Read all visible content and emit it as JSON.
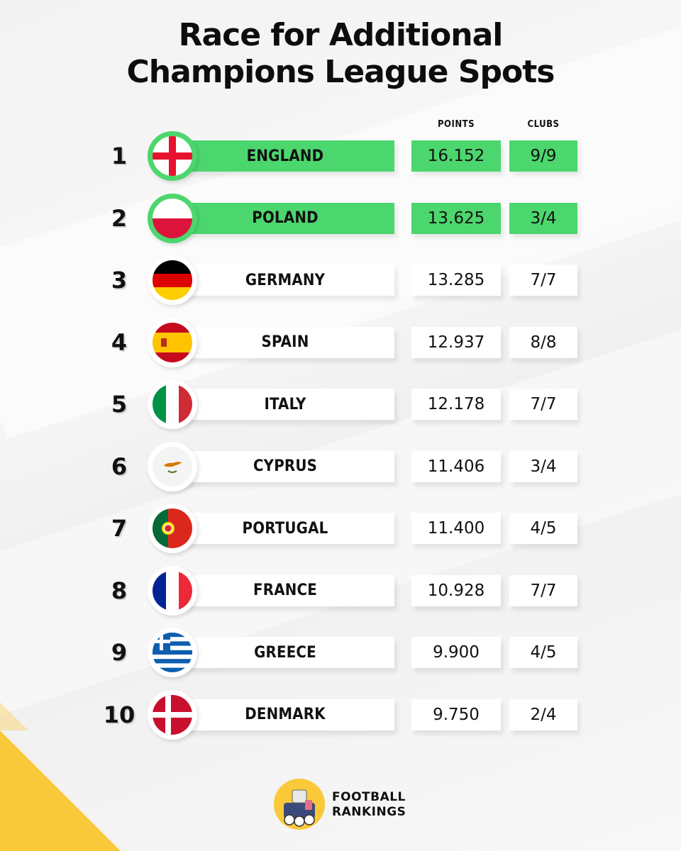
{
  "title": {
    "line1": "Race for Additional",
    "line2": "Champions League Spots"
  },
  "columns": {
    "points": "POINTS",
    "clubs": "CLUBS"
  },
  "rows": [
    {
      "rank": "1",
      "country": "ENGLAND",
      "points": "16.152",
      "clubs": "9/9",
      "highlight": true,
      "flag": "england-flag-icon"
    },
    {
      "rank": "2",
      "country": "POLAND",
      "points": "13.625",
      "clubs": "3/4",
      "highlight": true,
      "flag": "poland-flag-icon"
    },
    {
      "rank": "3",
      "country": "GERMANY",
      "points": "13.285",
      "clubs": "7/7",
      "highlight": false,
      "flag": "germany-flag-icon"
    },
    {
      "rank": "4",
      "country": "SPAIN",
      "points": "12.937",
      "clubs": "8/8",
      "highlight": false,
      "flag": "spain-flag-icon"
    },
    {
      "rank": "5",
      "country": "ITALY",
      "points": "12.178",
      "clubs": "7/7",
      "highlight": false,
      "flag": "italy-flag-icon"
    },
    {
      "rank": "6",
      "country": "CYPRUS",
      "points": "11.406",
      "clubs": "3/4",
      "highlight": false,
      "flag": "cyprus-flag-icon"
    },
    {
      "rank": "7",
      "country": "PORTUGAL",
      "points": "11.400",
      "clubs": "4/5",
      "highlight": false,
      "flag": "portugal-flag-icon"
    },
    {
      "rank": "8",
      "country": "FRANCE",
      "points": "10.928",
      "clubs": "7/7",
      "highlight": false,
      "flag": "france-flag-icon"
    },
    {
      "rank": "9",
      "country": "GREECE",
      "points": "9.900",
      "clubs": "4/5",
      "highlight": false,
      "flag": "greece-flag-icon"
    },
    {
      "rank": "10",
      "country": "DENMARK",
      "points": "9.750",
      "clubs": "2/4",
      "highlight": false,
      "flag": "denmark-flag-icon"
    }
  ],
  "brand": {
    "line1": "FOOTBALL",
    "line2": "RANKINGS",
    "logo": "football-rankings-logo-icon"
  },
  "colors": {
    "highlight": "#4cd66e",
    "accent": "#f9c93a"
  }
}
